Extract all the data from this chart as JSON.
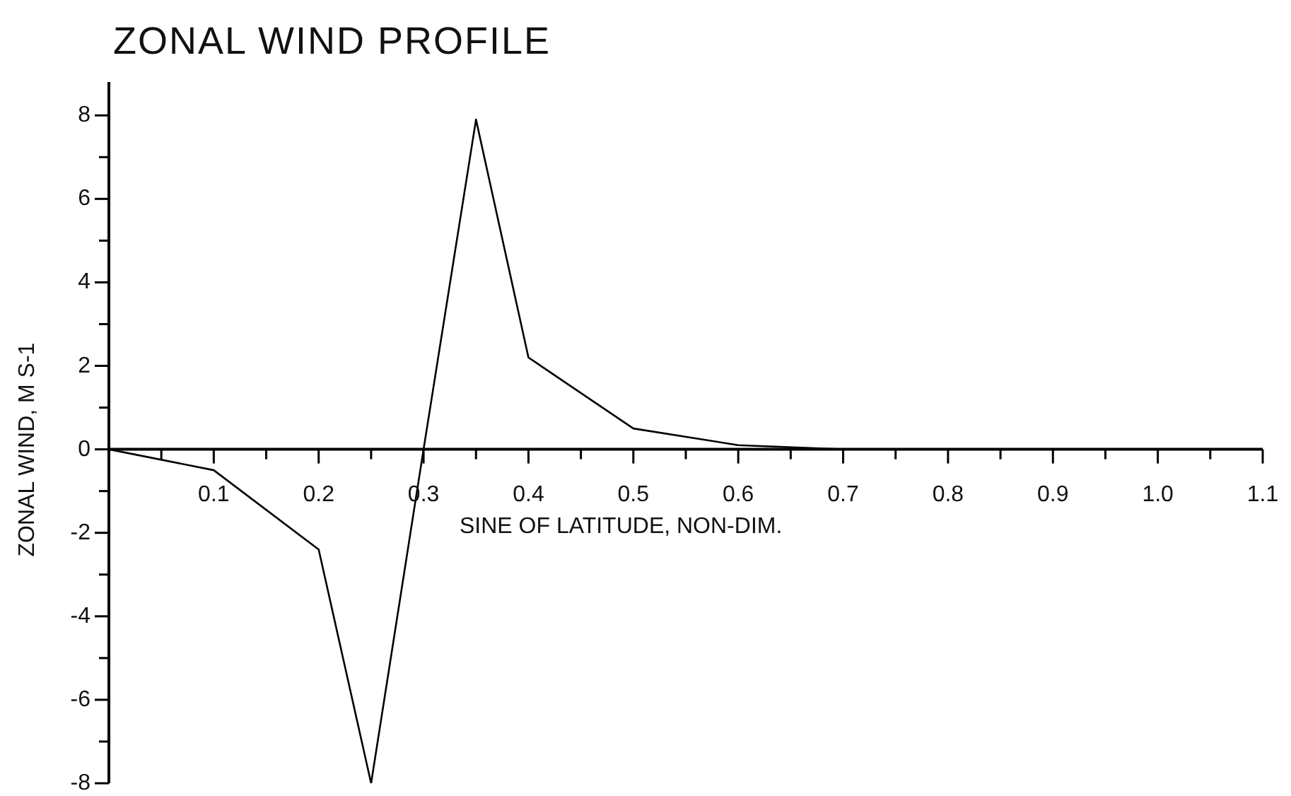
{
  "chart_data": {
    "type": "line",
    "title": "ZONAL WIND PROFILE",
    "xlabel": "SINE OF LATITUDE, NON-DIM.",
    "ylabel": "ZONAL WIND, M S-1",
    "x": [
      0,
      0.1,
      0.2,
      0.25,
      0.3,
      0.35,
      0.4,
      0.5,
      0.6,
      0.7,
      0.8,
      1.1
    ],
    "series": [
      {
        "color": "#000000",
        "values": [
          0,
          -0.5,
          -2.4,
          -8,
          0,
          7.9,
          2.2,
          0.5,
          0.1,
          0,
          0,
          0
        ]
      }
    ],
    "xlim": [
      0,
      1.1
    ],
    "xticks": [
      {
        "value": 0,
        "label": null
      },
      {
        "value": 0.05,
        "label": null
      },
      0.1,
      {
        "value": 0.15,
        "label": null
      },
      0.2,
      {
        "value": 0.25,
        "label": null
      },
      0.3,
      {
        "value": 0.35,
        "label": null
      },
      0.4,
      {
        "value": 0.45,
        "label": null
      },
      0.5,
      {
        "value": 0.55,
        "label": null
      },
      0.6,
      {
        "value": 0.65,
        "label": null
      },
      0.7,
      {
        "value": 0.75,
        "label": null
      },
      0.8,
      {
        "value": 0.85,
        "label": null
      },
      0.9,
      {
        "value": 0.95,
        "label": null
      },
      {
        "value": 1.0,
        "label": "1.0"
      },
      {
        "value": 1.05,
        "label": null
      },
      1.1
    ],
    "ylim": [
      -8,
      8.8
    ],
    "yticks": [
      -8,
      {
        "value": -7,
        "label": null
      },
      -6,
      {
        "value": -5,
        "label": null
      },
      -4,
      {
        "value": -3,
        "label": null
      },
      -2,
      {
        "value": -1,
        "label": null
      },
      0,
      {
        "value": 1,
        "label": null
      },
      2,
      {
        "value": 3,
        "label": null
      },
      4,
      {
        "value": 5,
        "label": null
      },
      6,
      {
        "value": 7,
        "label": null
      },
      8
    ],
    "grid": false,
    "legend": false,
    "marker": "none",
    "line_style": "solid"
  }
}
